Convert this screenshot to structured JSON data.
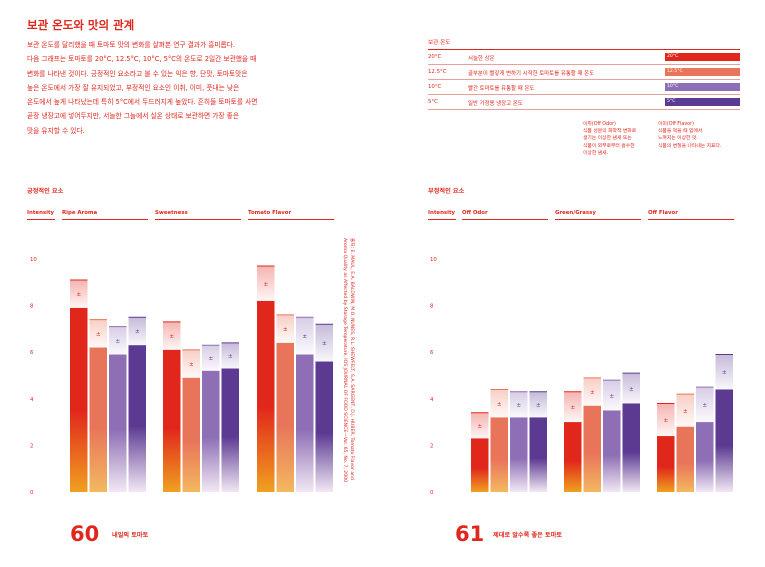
{
  "heading": "보관 온도와 맛의 관계",
  "intro_lines": [
    "보관 온도를 달리했을 때 토마토 맛의 변화를 살펴본 연구 결과가 흥미롭다.",
    "다음 그래프는 토마토를 20°C, 12.5°C, 10°C, 5°C의 온도로 2일간 보관했을 때",
    "변화를 나타낸 것이다. 긍정적인 요소라고 볼 수 있는 익은 향, 단맛, 토마토맛은",
    "높은 온도에서 가장 잘 유지되었고, 부정적인 요소인 이취, 이미, 풋내는 낮은",
    "온도에서 높게 나타났는데 특히 5°C에서 두드러지게 높았다. 흔히들 토마토를 사면",
    "곧장 냉장고에 넣어두지만, 서늘한 그늘에서 실온 상태로 보관하면 가장 좋은",
    "맛을 유지할 수 있다."
  ],
  "legend": {
    "title": "보관 온도",
    "rows": [
      {
        "temp": "20°C",
        "desc": "서늘한 상온",
        "swatch": "20°C",
        "color": "#e1261c"
      },
      {
        "temp": "12.5°C",
        "desc": "골부분이 빨갛게 변하기 시작한 토마토를 유통할 때 온도",
        "swatch": "12.5°C",
        "color": "#e8745a"
      },
      {
        "temp": "10°C",
        "desc": "빨간 토마토를 유통할 때 온도",
        "swatch": "10°C",
        "color": "#8e6fb5"
      },
      {
        "temp": "5°C",
        "desc": "일반 가정용 냉장고 온도",
        "swatch": "5°C",
        "color": "#5c3a92"
      }
    ]
  },
  "notes": [
    {
      "lines": [
        "이취(Off Odor)",
        "식품 성분의 화학적 변화로",
        "생기는 이상한 냄새 또는",
        "식품이 외부로부터 흡수한",
        "이상한 냄새."
      ]
    },
    {
      "lines": [
        "이미(Off Flavor)",
        "식품을 먹을 때 입에서",
        "느껴지는 이상한 맛.",
        "식품의 변질을 나타내는 지표다."
      ]
    }
  ],
  "side_reference": [
    "출처: E. MAUL, E.A. BALDWIN, M.O. NUNES, R.L. SHEWFELT, S.A. SARGENT, D.J. HUBER, Tomato Flavor and",
    "Aroma Quality as Affected by Storage Temperature, IOS JOURNAL OF FOOD SCIENCE—Vol. 65, No. 7, 2000"
  ],
  "pages": {
    "left": {
      "number": "60",
      "label": "내일의 토마토"
    },
    "right": {
      "number": "61",
      "label": "제대로 알수록 좋은 토마토"
    }
  },
  "chart_data": [
    {
      "type": "bar",
      "title": "긍정적인 요소",
      "ylabel": "Intensity",
      "ylim": [
        0,
        10
      ],
      "yticks": [
        0,
        2,
        4,
        6,
        8,
        10
      ],
      "categories": [
        "Ripe Aroma",
        "Sweetness",
        "Tomato Flavor"
      ],
      "series": [
        {
          "name": "20°C",
          "values": [
            7.9,
            6.1,
            8.2
          ],
          "error": [
            1.2,
            1.2,
            1.5
          ]
        },
        {
          "name": "12.5°C",
          "values": [
            6.2,
            4.9,
            6.4
          ],
          "error": [
            1.2,
            1.2,
            1.2
          ]
        },
        {
          "name": "10°C",
          "values": [
            5.9,
            5.2,
            5.9
          ],
          "error": [
            1.2,
            1.1,
            1.6
          ]
        },
        {
          "name": "5°C",
          "values": [
            6.3,
            5.3,
            5.6
          ],
          "error": [
            1.2,
            1.1,
            1.6
          ]
        }
      ],
      "error_symbol": "±"
    },
    {
      "type": "bar",
      "title": "부정적인 요소",
      "ylabel": "Intensity",
      "ylim": [
        0,
        10
      ],
      "yticks": [
        0,
        2,
        4,
        6,
        8,
        10
      ],
      "categories": [
        "Off Odor",
        "Green/Grassy",
        "Off Flavor"
      ],
      "series": [
        {
          "name": "20°C",
          "values": [
            2.3,
            3.0,
            2.4
          ],
          "error": [
            1.1,
            1.3,
            1.4
          ]
        },
        {
          "name": "12.5°C",
          "values": [
            3.2,
            3.7,
            2.8
          ],
          "error": [
            1.2,
            1.2,
            1.4
          ]
        },
        {
          "name": "10°C",
          "values": [
            3.2,
            3.5,
            3.0
          ],
          "error": [
            1.1,
            1.3,
            1.5
          ]
        },
        {
          "name": "5°C",
          "values": [
            3.2,
            3.8,
            4.4
          ],
          "error": [
            1.1,
            1.3,
            1.5
          ]
        }
      ],
      "error_symbol": "±"
    }
  ]
}
